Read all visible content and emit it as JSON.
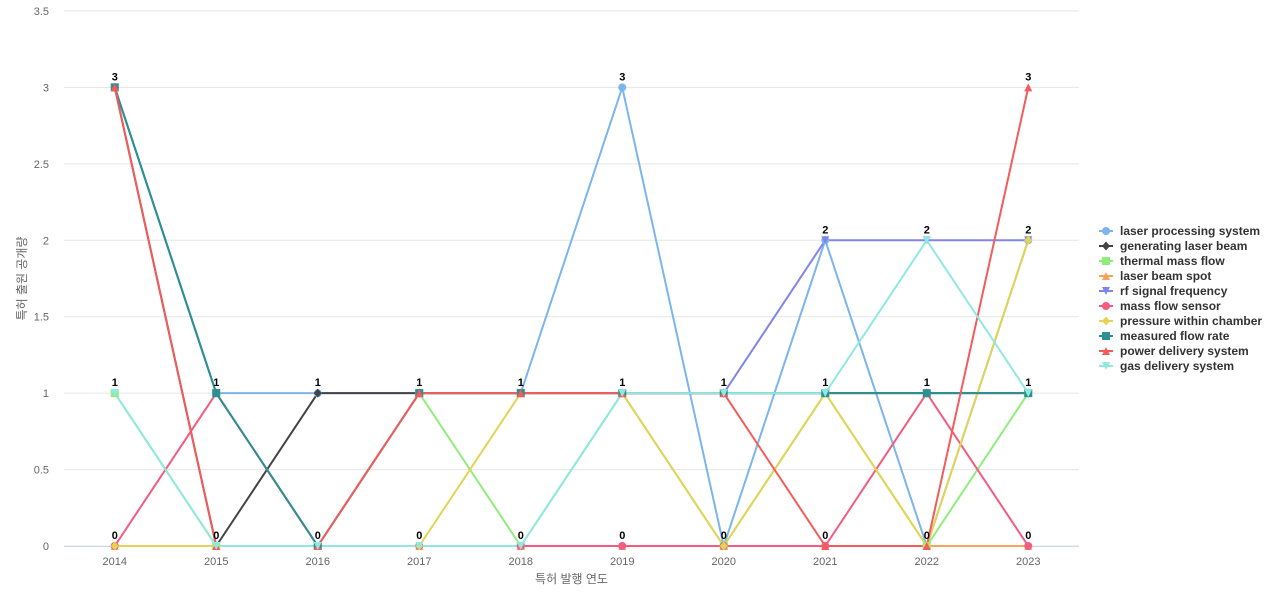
{
  "chart_data": {
    "type": "line",
    "xlabel": "특허 발행 연도",
    "ylabel": "특허 출원 공개량",
    "ylim": [
      0,
      3.5
    ],
    "yticks": [
      "0",
      "0.5",
      "1",
      "1.5",
      "2",
      "2.5",
      "3",
      "3.5"
    ],
    "categories": [
      "2014",
      "2015",
      "2016",
      "2017",
      "2018",
      "2019",
      "2020",
      "2021",
      "2022",
      "2023"
    ],
    "grid": true,
    "legend_position": "right",
    "series": [
      {
        "name": "laser processing system",
        "color": "#7cb5ec",
        "marker": "circle",
        "values": [
          3,
          1,
          1,
          1,
          1,
          3,
          0,
          2,
          0,
          2
        ]
      },
      {
        "name": "generating laser beam",
        "color": "#434348",
        "marker": "diamond",
        "values": [
          3,
          0,
          1,
          1,
          1,
          1,
          1,
          1,
          1,
          1
        ]
      },
      {
        "name": "thermal mass flow",
        "color": "#90ed7d",
        "marker": "square",
        "values": [
          1,
          0,
          0,
          1,
          0,
          1,
          0,
          1,
          0,
          1
        ]
      },
      {
        "name": "laser beam spot",
        "color": "#f7a35c",
        "marker": "triangle",
        "values": [
          0,
          0,
          0,
          0,
          0,
          0,
          0,
          0,
          0,
          0
        ]
      },
      {
        "name": "rf signal frequency",
        "color": "#8085e9",
        "marker": "triangle-down",
        "values": [
          3,
          1,
          0,
          1,
          1,
          1,
          1,
          2,
          2,
          2
        ]
      },
      {
        "name": "mass flow sensor",
        "color": "#f15c80",
        "marker": "circle",
        "values": [
          0,
          1,
          0,
          0,
          0,
          0,
          0,
          0,
          1,
          0
        ]
      },
      {
        "name": "pressure within chamber",
        "color": "#e4d354",
        "marker": "diamond",
        "values": [
          0,
          0,
          0,
          0,
          1,
          1,
          0,
          1,
          0,
          2
        ]
      },
      {
        "name": "measured flow rate",
        "color": "#2b908f",
        "marker": "square",
        "values": [
          3,
          1,
          0,
          1,
          1,
          1,
          1,
          1,
          1,
          1
        ]
      },
      {
        "name": "power delivery system",
        "color": "#f45b5b",
        "marker": "triangle",
        "values": [
          3,
          0,
          0,
          1,
          1,
          1,
          1,
          0,
          0,
          3
        ]
      },
      {
        "name": "gas delivery system",
        "color": "#91e8e1",
        "marker": "triangle-down",
        "values": [
          1,
          0,
          0,
          0,
          0,
          1,
          1,
          1,
          2,
          1
        ]
      }
    ],
    "data_labels": [
      {
        "x": "2014",
        "values": [
          "3",
          "1",
          "0"
        ]
      },
      {
        "x": "2015",
        "values": [
          "1",
          "0"
        ]
      },
      {
        "x": "2016",
        "values": [
          "1",
          "0"
        ]
      },
      {
        "x": "2017",
        "values": [
          "1",
          "0"
        ]
      },
      {
        "x": "2018",
        "values": [
          "1",
          "0"
        ]
      },
      {
        "x": "2019",
        "values": [
          "3",
          "1",
          "0"
        ]
      },
      {
        "x": "2020",
        "values": [
          "1",
          "0"
        ]
      },
      {
        "x": "2021",
        "values": [
          "2",
          "1",
          "0"
        ]
      },
      {
        "x": "2022",
        "values": [
          "2",
          "1",
          "0"
        ]
      },
      {
        "x": "2023",
        "values": [
          "3",
          "2",
          "1",
          "0"
        ]
      }
    ]
  }
}
